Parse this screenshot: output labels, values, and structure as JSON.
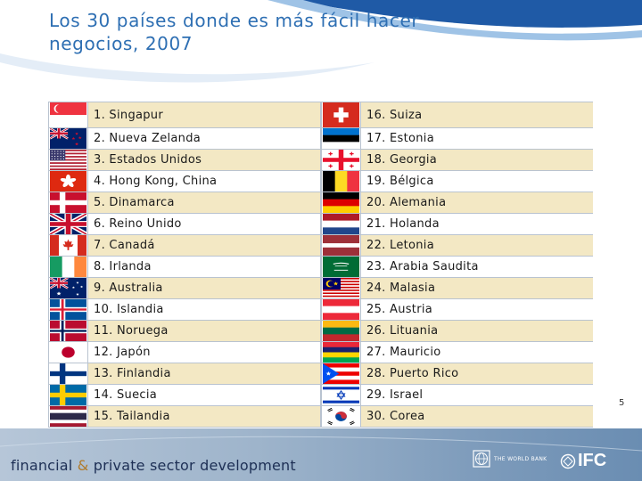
{
  "slide": {
    "title": "Los 30 países donde es más fácil hacer negocios, 2007",
    "page_number": "5"
  },
  "colors": {
    "title": "#2e6fb3",
    "row_band": "#f3e8c4",
    "grid": "#b9c3d0"
  },
  "countries": [
    {
      "label": "1. Singapur",
      "flag": "singapore-flag"
    },
    {
      "label": "2. Nueva Zelanda",
      "flag": "new-zealand-flag"
    },
    {
      "label": "3. Estados Unidos",
      "flag": "united-states-flag"
    },
    {
      "label": "4. Hong Kong, China",
      "flag": "hong-kong-flag"
    },
    {
      "label": "5. Dinamarca",
      "flag": "denmark-flag"
    },
    {
      "label": "6. Reino Unido",
      "flag": "united-kingdom-flag"
    },
    {
      "label": "7. Canadá",
      "flag": "canada-flag"
    },
    {
      "label": "8. Irlanda",
      "flag": "ireland-flag"
    },
    {
      "label": "9. Australia",
      "flag": "australia-flag"
    },
    {
      "label": "10. Islandia",
      "flag": "iceland-flag"
    },
    {
      "label": "11. Noruega",
      "flag": "norway-flag"
    },
    {
      "label": "12. Japón",
      "flag": "japan-flag"
    },
    {
      "label": "13. Finlandia",
      "flag": "finland-flag"
    },
    {
      "label": "14. Suecia",
      "flag": "sweden-flag"
    },
    {
      "label": "15. Tailandia",
      "flag": "thailand-flag"
    },
    {
      "label": "16. Suiza",
      "flag": "switzerland-flag"
    },
    {
      "label": "17. Estonia",
      "flag": "estonia-flag"
    },
    {
      "label": "18. Georgia",
      "flag": "georgia-flag"
    },
    {
      "label": "19. Bélgica",
      "flag": "belgium-flag"
    },
    {
      "label": "20. Alemania",
      "flag": "germany-flag"
    },
    {
      "label": "21. Holanda",
      "flag": "netherlands-flag"
    },
    {
      "label": "22. Letonia",
      "flag": "latvia-flag"
    },
    {
      "label": "23. Arabia Saudita",
      "flag": "saudi-arabia-flag"
    },
    {
      "label": "24. Malasia",
      "flag": "malaysia-flag"
    },
    {
      "label": "25. Austria",
      "flag": "austria-flag"
    },
    {
      "label": "26. Lituania",
      "flag": "lithuania-flag"
    },
    {
      "label": "27. Mauricio",
      "flag": "mauritius-flag"
    },
    {
      "label": "28. Puerto Rico",
      "flag": "puerto-rico-flag"
    },
    {
      "label": "29. Israel",
      "flag": "israel-flag"
    },
    {
      "label": "30. Corea",
      "flag": "south-korea-flag"
    }
  ],
  "footer": {
    "part1": "financial",
    "amp": "&",
    "part2": "private sector development",
    "world_bank": "THE WORLD BANK",
    "ifc": "IFC"
  }
}
